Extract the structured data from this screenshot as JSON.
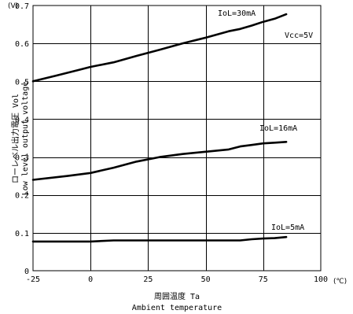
{
  "chart_data": {
    "type": "line",
    "ylabel_jp": "ローレベル出力電圧  Vol",
    "ylabel_en": "Low level output voltage",
    "xlabel_jp": "周囲温度  Ta",
    "xlabel_en": "Ambient temperature",
    "y_unit": "(V)",
    "x_unit": "(℃)",
    "xlim": [
      -25,
      100
    ],
    "ylim": [
      0,
      0.7
    ],
    "grid": true,
    "x_ticks": [
      -25,
      0,
      25,
      50,
      75,
      100
    ],
    "x_tick_labels": [
      "-25",
      "0",
      "25",
      "50",
      "75",
      "100"
    ],
    "y_ticks": [
      0,
      0.1,
      0.2,
      0.3,
      0.4,
      0.5,
      0.6,
      0.7
    ],
    "y_tick_labels": [
      "0",
      "0.1",
      "0.2",
      "0.3",
      "0.4",
      "0.5",
      "0.6",
      "0.7"
    ],
    "condition": "Vcc=5V",
    "series": [
      {
        "name": "IoL=30mA",
        "x": [
          -25,
          -15,
          -5,
          0,
          10,
          20,
          30,
          40,
          50,
          60,
          65,
          70,
          75,
          80,
          85
        ],
        "y": [
          0.5,
          0.515,
          0.53,
          0.538,
          0.55,
          0.567,
          0.583,
          0.6,
          0.615,
          0.632,
          0.638,
          0.647,
          0.657,
          0.665,
          0.677
        ]
      },
      {
        "name": "IoL=16mA",
        "x": [
          -25,
          -10,
          0,
          10,
          20,
          30,
          40,
          50,
          60,
          65,
          70,
          75,
          80,
          85
        ],
        "y": [
          0.24,
          0.25,
          0.258,
          0.272,
          0.288,
          0.3,
          0.308,
          0.314,
          0.32,
          0.328,
          0.332,
          0.336,
          0.338,
          0.34
        ]
      },
      {
        "name": "IoL=5mA",
        "x": [
          -25,
          0,
          10,
          25,
          50,
          65,
          70,
          75,
          80,
          85
        ],
        "y": [
          0.077,
          0.077,
          0.08,
          0.08,
          0.08,
          0.08,
          0.083,
          0.085,
          0.086,
          0.089
        ]
      }
    ]
  }
}
